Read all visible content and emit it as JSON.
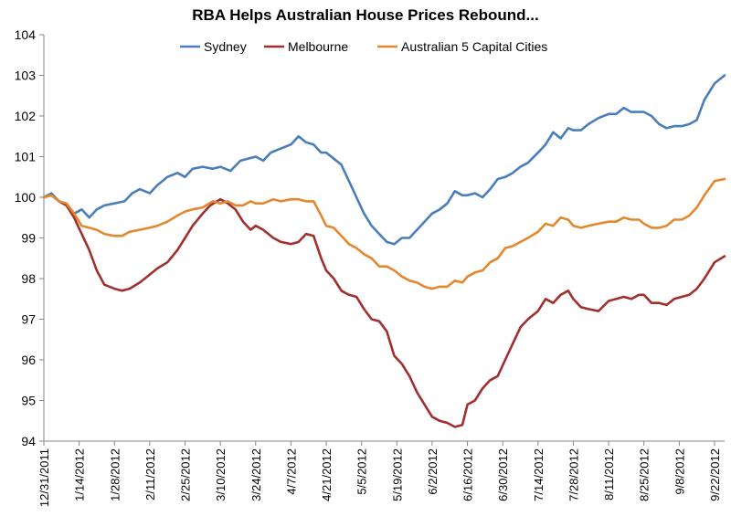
{
  "chart_data": {
    "type": "line",
    "title": "RBA Helps Australian House Prices Rebound...",
    "xlabel": "",
    "ylabel": "",
    "ylim": [
      94,
      104
    ],
    "yticks": [
      94,
      95,
      96,
      97,
      98,
      99,
      100,
      101,
      102,
      103,
      104
    ],
    "xticks": [
      "12/31/2011",
      "1/14/2012",
      "1/28/2012",
      "2/11/2012",
      "2/25/2012",
      "3/10/2012",
      "3/24/2012",
      "4/7/2012",
      "4/21/2012",
      "5/5/2012",
      "5/19/2012",
      "6/2/2012",
      "6/16/2012",
      "6/30/2012",
      "7/14/2012",
      "7/28/2012",
      "8/11/2012",
      "8/25/2012",
      "9/8/2012",
      "9/22/2012"
    ],
    "grid": false,
    "legend": "top",
    "series": [
      {
        "name": "Sydney",
        "color": "#4a7ebb",
        "points": [
          [
            "12/31/2011",
            100.0
          ],
          [
            "1/3/2012",
            100.1
          ],
          [
            "1/6/2012",
            99.9
          ],
          [
            "1/9/2012",
            99.8
          ],
          [
            "1/12/2012",
            99.6
          ],
          [
            "1/15/2012",
            99.7
          ],
          [
            "1/18/2012",
            99.5
          ],
          [
            "1/21/2012",
            99.7
          ],
          [
            "1/24/2012",
            99.8
          ],
          [
            "1/28/2012",
            99.85
          ],
          [
            "2/1/2012",
            99.9
          ],
          [
            "2/4/2012",
            100.1
          ],
          [
            "2/7/2012",
            100.2
          ],
          [
            "2/11/2012",
            100.1
          ],
          [
            "2/14/2012",
            100.3
          ],
          [
            "2/18/2012",
            100.5
          ],
          [
            "2/22/2012",
            100.6
          ],
          [
            "2/25/2012",
            100.5
          ],
          [
            "2/28/2012",
            100.7
          ],
          [
            "3/3/2012",
            100.75
          ],
          [
            "3/7/2012",
            100.7
          ],
          [
            "3/10/2012",
            100.75
          ],
          [
            "3/14/2012",
            100.65
          ],
          [
            "3/18/2012",
            100.9
          ],
          [
            "3/21/2012",
            100.95
          ],
          [
            "3/24/2012",
            101.0
          ],
          [
            "3/27/2012",
            100.9
          ],
          [
            "3/30/2012",
            101.1
          ],
          [
            "4/3/2012",
            101.2
          ],
          [
            "4/7/2012",
            101.3
          ],
          [
            "4/10/2012",
            101.5
          ],
          [
            "4/13/2012",
            101.35
          ],
          [
            "4/16/2012",
            101.3
          ],
          [
            "4/19/2012",
            101.1
          ],
          [
            "4/21/2012",
            101.1
          ],
          [
            "4/24/2012",
            100.95
          ],
          [
            "4/27/2012",
            100.8
          ],
          [
            "4/30/2012",
            100.4
          ],
          [
            "5/3/2012",
            100.0
          ],
          [
            "5/6/2012",
            99.6
          ],
          [
            "5/9/2012",
            99.3
          ],
          [
            "5/12/2012",
            99.1
          ],
          [
            "5/15/2012",
            98.9
          ],
          [
            "5/18/2012",
            98.85
          ],
          [
            "5/21/2012",
            99.0
          ],
          [
            "5/24/2012",
            99.0
          ],
          [
            "5/27/2012",
            99.2
          ],
          [
            "5/30/2012",
            99.4
          ],
          [
            "6/2/2012",
            99.6
          ],
          [
            "6/5/2012",
            99.7
          ],
          [
            "6/8/2012",
            99.85
          ],
          [
            "6/11/2012",
            100.15
          ],
          [
            "6/14/2012",
            100.05
          ],
          [
            "6/16/2012",
            100.05
          ],
          [
            "6/19/2012",
            100.1
          ],
          [
            "6/22/2012",
            100.0
          ],
          [
            "6/25/2012",
            100.2
          ],
          [
            "6/28/2012",
            100.45
          ],
          [
            "7/1/2012",
            100.5
          ],
          [
            "7/4/2012",
            100.6
          ],
          [
            "7/7/2012",
            100.75
          ],
          [
            "7/10/2012",
            100.85
          ],
          [
            "7/14/2012",
            101.1
          ],
          [
            "7/17/2012",
            101.3
          ],
          [
            "7/20/2012",
            101.6
          ],
          [
            "7/23/2012",
            101.45
          ],
          [
            "7/26/2012",
            101.7
          ],
          [
            "7/28/2012",
            101.65
          ],
          [
            "7/31/2012",
            101.65
          ],
          [
            "8/3/2012",
            101.8
          ],
          [
            "8/7/2012",
            101.95
          ],
          [
            "8/11/2012",
            102.05
          ],
          [
            "8/14/2012",
            102.05
          ],
          [
            "8/17/2012",
            102.2
          ],
          [
            "8/20/2012",
            102.1
          ],
          [
            "8/23/2012",
            102.1
          ],
          [
            "8/25/2012",
            102.1
          ],
          [
            "8/28/2012",
            102.0
          ],
          [
            "8/31/2012",
            101.8
          ],
          [
            "9/3/2012",
            101.7
          ],
          [
            "9/6/2012",
            101.75
          ],
          [
            "9/9/2012",
            101.75
          ],
          [
            "9/12/2012",
            101.8
          ],
          [
            "9/15/2012",
            101.9
          ],
          [
            "9/18/2012",
            102.4
          ],
          [
            "9/22/2012",
            102.8
          ],
          [
            "9/26/2012",
            103.0
          ]
        ]
      },
      {
        "name": "Melbourne",
        "color": "#a0302e",
        "points": [
          [
            "12/31/2011",
            100.0
          ],
          [
            "1/3/2012",
            100.05
          ],
          [
            "1/6/2012",
            99.9
          ],
          [
            "1/9/2012",
            99.8
          ],
          [
            "1/12/2012",
            99.5
          ],
          [
            "1/15/2012",
            99.1
          ],
          [
            "1/18/2012",
            98.7
          ],
          [
            "1/21/2012",
            98.2
          ],
          [
            "1/24/2012",
            97.85
          ],
          [
            "1/28/2012",
            97.75
          ],
          [
            "1/31/2012",
            97.7
          ],
          [
            "2/3/2012",
            97.75
          ],
          [
            "2/7/2012",
            97.9
          ],
          [
            "2/11/2012",
            98.1
          ],
          [
            "2/14/2012",
            98.25
          ],
          [
            "2/18/2012",
            98.4
          ],
          [
            "2/22/2012",
            98.7
          ],
          [
            "2/25/2012",
            99.0
          ],
          [
            "2/28/2012",
            99.3
          ],
          [
            "3/3/2012",
            99.6
          ],
          [
            "3/6/2012",
            99.8
          ],
          [
            "3/10/2012",
            99.95
          ],
          [
            "3/13/2012",
            99.85
          ],
          [
            "3/16/2012",
            99.7
          ],
          [
            "3/19/2012",
            99.4
          ],
          [
            "3/22/2012",
            99.2
          ],
          [
            "3/24/2012",
            99.3
          ],
          [
            "3/27/2012",
            99.2
          ],
          [
            "3/31/2012",
            99.0
          ],
          [
            "4/3/2012",
            98.9
          ],
          [
            "4/7/2012",
            98.85
          ],
          [
            "4/10/2012",
            98.9
          ],
          [
            "4/13/2012",
            99.1
          ],
          [
            "4/16/2012",
            99.05
          ],
          [
            "4/19/2012",
            98.5
          ],
          [
            "4/21/2012",
            98.2
          ],
          [
            "4/24/2012",
            98.0
          ],
          [
            "4/27/2012",
            97.7
          ],
          [
            "4/30/2012",
            97.6
          ],
          [
            "5/3/2012",
            97.55
          ],
          [
            "5/6/2012",
            97.25
          ],
          [
            "5/9/2012",
            97.0
          ],
          [
            "5/12/2012",
            96.95
          ],
          [
            "5/15/2012",
            96.7
          ],
          [
            "5/18/2012",
            96.1
          ],
          [
            "5/21/2012",
            95.9
          ],
          [
            "5/24/2012",
            95.6
          ],
          [
            "5/27/2012",
            95.2
          ],
          [
            "5/30/2012",
            94.9
          ],
          [
            "6/2/2012",
            94.6
          ],
          [
            "6/5/2012",
            94.5
          ],
          [
            "6/8/2012",
            94.45
          ],
          [
            "6/11/2012",
            94.35
          ],
          [
            "6/14/2012",
            94.4
          ],
          [
            "6/16/2012",
            94.9
          ],
          [
            "6/19/2012",
            95.0
          ],
          [
            "6/22/2012",
            95.3
          ],
          [
            "6/25/2012",
            95.5
          ],
          [
            "6/28/2012",
            95.6
          ],
          [
            "7/1/2012",
            96.0
          ],
          [
            "7/4/2012",
            96.4
          ],
          [
            "7/7/2012",
            96.8
          ],
          [
            "7/10/2012",
            97.0
          ],
          [
            "7/14/2012",
            97.2
          ],
          [
            "7/17/2012",
            97.5
          ],
          [
            "7/20/2012",
            97.4
          ],
          [
            "7/23/2012",
            97.6
          ],
          [
            "7/26/2012",
            97.7
          ],
          [
            "7/28/2012",
            97.5
          ],
          [
            "7/31/2012",
            97.3
          ],
          [
            "8/3/2012",
            97.25
          ],
          [
            "8/7/2012",
            97.2
          ],
          [
            "8/11/2012",
            97.45
          ],
          [
            "8/14/2012",
            97.5
          ],
          [
            "8/17/2012",
            97.55
          ],
          [
            "8/20/2012",
            97.5
          ],
          [
            "8/23/2012",
            97.6
          ],
          [
            "8/25/2012",
            97.6
          ],
          [
            "8/28/2012",
            97.4
          ],
          [
            "8/31/2012",
            97.4
          ],
          [
            "9/3/2012",
            97.35
          ],
          [
            "9/6/2012",
            97.5
          ],
          [
            "9/9/2012",
            97.55
          ],
          [
            "9/12/2012",
            97.6
          ],
          [
            "9/15/2012",
            97.75
          ],
          [
            "9/18/2012",
            98.0
          ],
          [
            "9/22/2012",
            98.4
          ],
          [
            "9/26/2012",
            98.55
          ]
        ]
      },
      {
        "name": "Australian 5 Capital Cities",
        "color": "#e3882f",
        "points": [
          [
            "12/31/2011",
            100.0
          ],
          [
            "1/3/2012",
            100.05
          ],
          [
            "1/6/2012",
            99.9
          ],
          [
            "1/9/2012",
            99.85
          ],
          [
            "1/12/2012",
            99.6
          ],
          [
            "1/15/2012",
            99.3
          ],
          [
            "1/18/2012",
            99.25
          ],
          [
            "1/21/2012",
            99.2
          ],
          [
            "1/24/2012",
            99.1
          ],
          [
            "1/28/2012",
            99.05
          ],
          [
            "1/31/2012",
            99.05
          ],
          [
            "2/3/2012",
            99.15
          ],
          [
            "2/7/2012",
            99.2
          ],
          [
            "2/11/2012",
            99.25
          ],
          [
            "2/14/2012",
            99.3
          ],
          [
            "2/18/2012",
            99.4
          ],
          [
            "2/22/2012",
            99.55
          ],
          [
            "2/25/2012",
            99.65
          ],
          [
            "2/28/2012",
            99.7
          ],
          [
            "3/3/2012",
            99.75
          ],
          [
            "3/7/2012",
            99.9
          ],
          [
            "3/10/2012",
            99.85
          ],
          [
            "3/13/2012",
            99.9
          ],
          [
            "3/16/2012",
            99.8
          ],
          [
            "3/19/2012",
            99.8
          ],
          [
            "3/22/2012",
            99.9
          ],
          [
            "3/24/2012",
            99.85
          ],
          [
            "3/27/2012",
            99.85
          ],
          [
            "3/31/2012",
            99.95
          ],
          [
            "4/3/2012",
            99.9
          ],
          [
            "4/7/2012",
            99.95
          ],
          [
            "4/10/2012",
            99.95
          ],
          [
            "4/13/2012",
            99.9
          ],
          [
            "4/16/2012",
            99.9
          ],
          [
            "4/19/2012",
            99.55
          ],
          [
            "4/21/2012",
            99.3
          ],
          [
            "4/24/2012",
            99.25
          ],
          [
            "4/27/2012",
            99.05
          ],
          [
            "4/30/2012",
            98.85
          ],
          [
            "5/3/2012",
            98.75
          ],
          [
            "5/6/2012",
            98.6
          ],
          [
            "5/9/2012",
            98.5
          ],
          [
            "5/12/2012",
            98.3
          ],
          [
            "5/15/2012",
            98.3
          ],
          [
            "5/18/2012",
            98.2
          ],
          [
            "5/21/2012",
            98.05
          ],
          [
            "5/24/2012",
            97.95
          ],
          [
            "5/27/2012",
            97.9
          ],
          [
            "5/30/2012",
            97.8
          ],
          [
            "6/2/2012",
            97.75
          ],
          [
            "6/5/2012",
            97.8
          ],
          [
            "6/8/2012",
            97.8
          ],
          [
            "6/11/2012",
            97.95
          ],
          [
            "6/14/2012",
            97.9
          ],
          [
            "6/16/2012",
            98.05
          ],
          [
            "6/19/2012",
            98.15
          ],
          [
            "6/22/2012",
            98.2
          ],
          [
            "6/25/2012",
            98.4
          ],
          [
            "6/28/2012",
            98.5
          ],
          [
            "7/1/2012",
            98.75
          ],
          [
            "7/4/2012",
            98.8
          ],
          [
            "7/7/2012",
            98.9
          ],
          [
            "7/10/2012",
            99.0
          ],
          [
            "7/14/2012",
            99.15
          ],
          [
            "7/17/2012",
            99.35
          ],
          [
            "7/20/2012",
            99.3
          ],
          [
            "7/23/2012",
            99.5
          ],
          [
            "7/26/2012",
            99.45
          ],
          [
            "7/28/2012",
            99.3
          ],
          [
            "7/31/2012",
            99.25
          ],
          [
            "8/3/2012",
            99.3
          ],
          [
            "8/7/2012",
            99.35
          ],
          [
            "8/11/2012",
            99.4
          ],
          [
            "8/14/2012",
            99.4
          ],
          [
            "8/17/2012",
            99.5
          ],
          [
            "8/20/2012",
            99.45
          ],
          [
            "8/23/2012",
            99.45
          ],
          [
            "8/25/2012",
            99.35
          ],
          [
            "8/28/2012",
            99.25
          ],
          [
            "8/31/2012",
            99.25
          ],
          [
            "9/3/2012",
            99.3
          ],
          [
            "9/6/2012",
            99.45
          ],
          [
            "9/9/2012",
            99.45
          ],
          [
            "9/12/2012",
            99.55
          ],
          [
            "9/15/2012",
            99.75
          ],
          [
            "9/18/2012",
            100.05
          ],
          [
            "9/22/2012",
            100.4
          ],
          [
            "9/26/2012",
            100.45
          ]
        ]
      }
    ]
  }
}
